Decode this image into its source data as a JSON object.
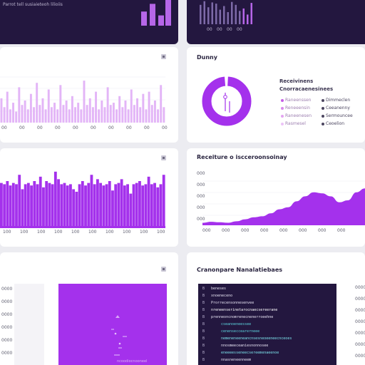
{
  "top_left": {
    "header": "Parrot tell susiaieteoh lilioiis",
    "bars": [
      0.55,
      0.85,
      0.4,
      1.0
    ],
    "bar_color": "#b666e8"
  },
  "top_right": {
    "bars": [
      0.8,
      0.95,
      0.7,
      0.9,
      0.85,
      0.6,
      0.75,
      0.5,
      0.92,
      0.8,
      0.55,
      0.65,
      0.4,
      0.88
    ],
    "ticks": [
      "00",
      "00",
      "00",
      "00"
    ]
  },
  "panel_bar_1": {
    "icon": "menu-icon",
    "series": [
      0.55,
      0.35,
      0.7,
      0.3,
      0.45,
      0.25,
      0.8,
      0.4,
      0.5,
      0.3,
      0.65,
      0.35,
      0.9,
      0.4,
      0.55,
      0.3,
      0.75,
      0.35,
      0.45,
      0.3,
      0.85,
      0.4,
      0.5,
      0.3,
      0.6,
      0.35,
      0.45,
      0.3,
      0.95,
      0.4,
      0.55,
      0.35,
      0.7,
      0.3,
      0.5,
      0.35,
      0.8,
      0.4,
      0.45,
      0.3,
      0.6,
      0.35,
      0.5,
      0.3,
      0.75,
      0.4,
      0.55,
      0.35,
      0.65,
      0.3,
      0.7,
      0.4,
      0.5,
      0.3,
      0.85,
      0.35
    ],
    "ticks": [
      "00",
      "00",
      "00",
      "00",
      "00",
      "00",
      "00",
      "00",
      "00",
      "00"
    ]
  },
  "panel_donut": {
    "title": "Dunny",
    "subtitle": "Receivinens",
    "legend_title": "Cnorracaenesinees",
    "legend_left": [
      "Raneenssen",
      "Reneeensin",
      "Raneenesen",
      "Rasmesel"
    ],
    "legend_right": [
      "Dimmeclen",
      "Ceeanenny",
      "Sermouncee",
      "Ceoelion"
    ]
  },
  "panel_bar_2": {
    "icon": "menu-icon",
    "series": [
      0.72,
      0.7,
      0.75,
      0.68,
      0.72,
      0.7,
      0.85,
      0.62,
      0.7,
      0.72,
      0.68,
      0.75,
      0.7,
      0.82,
      0.65,
      0.75,
      0.72,
      0.7,
      0.9,
      0.78,
      0.7,
      0.72,
      0.68,
      0.7,
      0.62,
      0.58,
      0.7,
      0.75,
      0.68,
      0.72,
      0.85,
      0.7,
      0.78,
      0.72,
      0.68,
      0.7,
      0.75,
      0.6,
      0.7,
      0.72,
      0.78,
      0.68,
      0.7,
      0.55,
      0.7,
      0.72,
      0.75,
      0.68,
      0.7,
      0.82,
      0.7,
      0.72,
      0.65,
      0.7,
      0.85
    ],
    "ticks": [
      "100",
      "100",
      "100",
      "100",
      "100",
      "100",
      "100",
      "100",
      "100",
      "100"
    ],
    "bar_color": "#a431ec"
  },
  "panel_area": {
    "title": "Receiture o iscceroonsoinay",
    "y_ticks": [
      "000",
      "000",
      "000",
      "000",
      "000"
    ],
    "x_ticks": [
      "000",
      "000",
      "000",
      "000",
      "000",
      "000",
      "000",
      "000"
    ],
    "curve": [
      0.05,
      0.07,
      0.06,
      0.05,
      0.08,
      0.12,
      0.16,
      0.18,
      0.24,
      0.32,
      0.36,
      0.48,
      0.58,
      0.66,
      0.64,
      0.58,
      0.46,
      0.5,
      0.66,
      0.74
    ]
  },
  "bottom_left": {
    "labels": [
      "0000",
      "0000",
      "0000",
      "0000",
      "0000",
      "0000"
    ],
    "icon": "expand-icon",
    "panel_text": "ncoodiocnooneel"
  },
  "bottom_right": {
    "title": "Cranonpare Nanalatiebaes",
    "code_lines": [
      {
        "num": "B",
        "text": "beneses",
        "color": "#e9e5f5"
      },
      {
        "num": "B",
        "text": "xnoeneceno",
        "color": "#e9e5f5"
      },
      {
        "num": "B",
        "text": "Prorrecensonnesenvee",
        "color": "#e9e5f5"
      },
      {
        "num": "B",
        "text": "nreneenserinetarocnaecsereerane",
        "color": "#ffffff"
      },
      {
        "num": "B",
        "text": "prenneoncnomrenecnenerroeehne",
        "color": "#e9e5f5"
      },
      {
        "num": "B",
        "text": "cseanoeneessee",
        "color": "#5dd5df"
      },
      {
        "num": "B",
        "text": "cenenseccearerneee",
        "color": "#5dd5df"
      },
      {
        "num": "B",
        "text": "nemeneneeneancnsesneoeeneecnceoes",
        "color": "#7ce2eb"
      },
      {
        "num": "B",
        "text": "nnosmeeceaniesnonnosee",
        "color": "#e9e5f5"
      },
      {
        "num": "B",
        "text": "eneeeesseneecsereemenaeenoe",
        "color": "#7ce2eb"
      },
      {
        "num": "B",
        "text": "nnasneneenneem",
        "color": "#e9e5f5"
      }
    ],
    "side_labels": [
      "0000",
      "0000",
      "0000",
      "0000",
      "0000",
      "0000",
      "0000"
    ]
  },
  "colors": {
    "accent": "#a431ec",
    "accent_light": "#e3b5f7",
    "dark": "#23173f"
  }
}
